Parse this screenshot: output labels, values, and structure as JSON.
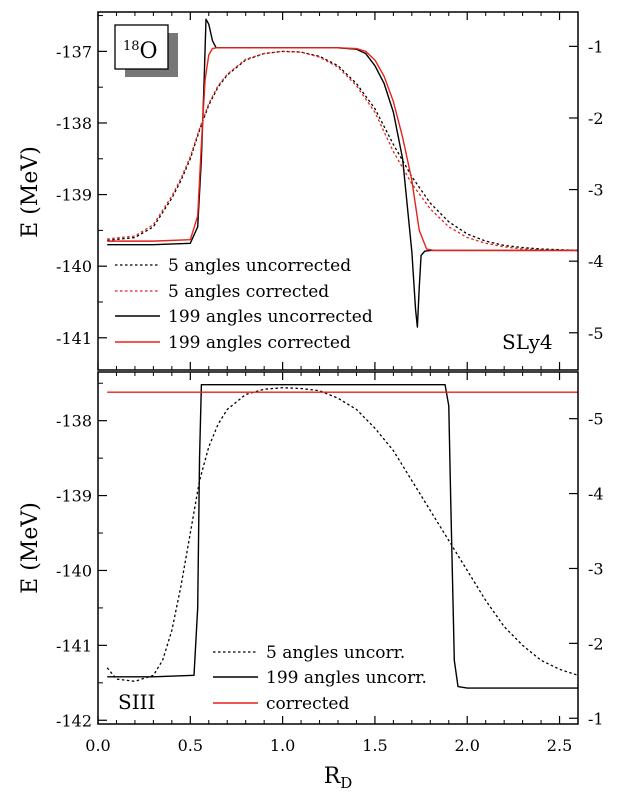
{
  "chart_data": [
    {
      "type": "line",
      "panel": "top",
      "ylabel": "E (MeV)",
      "xlim": [
        0.0,
        2.6
      ],
      "ylim": [
        -141.45,
        -136.45
      ],
      "yticks": [
        -141,
        -140,
        -139,
        -138,
        -137
      ],
      "y2_ticks": [
        "-5",
        "-4",
        "-3",
        "-2",
        "-1"
      ],
      "nucleus_label": {
        "mass": "18",
        "element": "O"
      },
      "force_label": "SLy4",
      "legend_position": "lower-left",
      "series": [
        {
          "name": "5 angles uncorrected",
          "color": "#000000",
          "style": "dotted",
          "x": [
            0.05,
            0.2,
            0.3,
            0.4,
            0.45,
            0.5,
            0.55,
            0.6,
            0.65,
            0.7,
            0.8,
            0.9,
            1.0,
            1.1,
            1.2,
            1.3,
            1.4,
            1.5,
            1.6,
            1.7,
            1.8,
            1.9,
            2.0,
            2.1,
            2.2,
            2.3,
            2.4,
            2.5,
            2.6
          ],
          "y": [
            -139.64,
            -139.6,
            -139.45,
            -139.05,
            -138.8,
            -138.5,
            -138.1,
            -137.75,
            -137.5,
            -137.33,
            -137.12,
            -137.03,
            -137.0,
            -137.01,
            -137.07,
            -137.2,
            -137.45,
            -137.8,
            -138.3,
            -138.75,
            -139.12,
            -139.38,
            -139.55,
            -139.65,
            -139.71,
            -139.74,
            -139.76,
            -139.77,
            -139.78
          ]
        },
        {
          "name": "5 angles corrected",
          "color": "#e8211a",
          "style": "dotted",
          "x": [
            0.05,
            0.2,
            0.3,
            0.4,
            0.45,
            0.5,
            0.55,
            0.6,
            0.65,
            0.7,
            0.8,
            0.9,
            1.0,
            1.1,
            1.2,
            1.3,
            1.4,
            1.5,
            1.6,
            1.7,
            1.8,
            1.9,
            2.0,
            2.1,
            2.2,
            2.3,
            2.4,
            2.5,
            2.6
          ],
          "y": [
            -139.62,
            -139.58,
            -139.42,
            -139.02,
            -138.77,
            -138.47,
            -138.08,
            -137.73,
            -137.48,
            -137.32,
            -137.11,
            -137.03,
            -137.0,
            -137.01,
            -137.08,
            -137.22,
            -137.48,
            -137.85,
            -138.4,
            -138.85,
            -139.2,
            -139.45,
            -139.6,
            -139.68,
            -139.73,
            -139.76,
            -139.77,
            -139.78,
            -139.78
          ]
        },
        {
          "name": "199 angles uncorrected",
          "color": "#000000",
          "style": "solid",
          "x": [
            0.05,
            0.3,
            0.5,
            0.54,
            0.56,
            0.575,
            0.585,
            0.6,
            0.62,
            0.64,
            0.7,
            1.0,
            1.3,
            1.4,
            1.45,
            1.5,
            1.55,
            1.6,
            1.65,
            1.7,
            1.72,
            1.73,
            1.74,
            1.75,
            1.77,
            1.8,
            2.0,
            2.3,
            2.6
          ],
          "y": [
            -139.7,
            -139.7,
            -139.68,
            -139.45,
            -138.5,
            -137.4,
            -136.55,
            -136.62,
            -136.85,
            -136.95,
            -136.95,
            -136.95,
            -136.95,
            -136.97,
            -137.03,
            -137.2,
            -137.45,
            -137.85,
            -138.5,
            -139.8,
            -140.6,
            -140.85,
            -140.3,
            -139.85,
            -139.79,
            -139.78,
            -139.78,
            -139.78,
            -139.78
          ]
        },
        {
          "name": "199 angles corrected",
          "color": "#e8211a",
          "style": "solid",
          "x": [
            0.05,
            0.3,
            0.5,
            0.54,
            0.56,
            0.58,
            0.6,
            0.62,
            0.64,
            0.7,
            1.0,
            1.3,
            1.4,
            1.45,
            1.5,
            1.55,
            1.6,
            1.65,
            1.7,
            1.74,
            1.78,
            1.82,
            2.0,
            2.3,
            2.6
          ],
          "y": [
            -139.65,
            -139.65,
            -139.63,
            -139.3,
            -138.3,
            -137.4,
            -137.05,
            -136.96,
            -136.95,
            -136.95,
            -136.95,
            -136.95,
            -136.96,
            -137.0,
            -137.12,
            -137.35,
            -137.7,
            -138.2,
            -138.8,
            -139.5,
            -139.76,
            -139.78,
            -139.78,
            -139.78,
            -139.78
          ]
        }
      ]
    },
    {
      "type": "line",
      "panel": "bottom",
      "xlabel": "R_D",
      "ylabel": "E (MeV)",
      "xlim": [
        0.0,
        2.6
      ],
      "ylim": [
        -142.05,
        -137.35
      ],
      "xticks": [
        0.0,
        0.5,
        1.0,
        1.5,
        2.0,
        2.5
      ],
      "yticks": [
        -142,
        -141,
        -140,
        -139,
        -138
      ],
      "y2_ticks": [
        "-1",
        "-2",
        "-3",
        "-4",
        "-5"
      ],
      "force_label": "SIII",
      "legend_position": "lower-right",
      "series": [
        {
          "name": "5 angles uncorr.",
          "color": "#000000",
          "style": "dotted",
          "x": [
            0.05,
            0.1,
            0.2,
            0.3,
            0.35,
            0.4,
            0.45,
            0.5,
            0.55,
            0.6,
            0.65,
            0.7,
            0.8,
            0.9,
            1.0,
            1.1,
            1.2,
            1.3,
            1.4,
            1.5,
            1.6,
            1.7,
            1.8,
            1.9,
            2.0,
            2.1,
            2.2,
            2.3,
            2.4,
            2.5,
            2.6
          ],
          "y": [
            -141.3,
            -141.45,
            -141.48,
            -141.4,
            -141.2,
            -140.8,
            -140.2,
            -139.5,
            -138.8,
            -138.35,
            -138.05,
            -137.85,
            -137.65,
            -137.58,
            -137.56,
            -137.57,
            -137.6,
            -137.7,
            -137.85,
            -138.1,
            -138.4,
            -138.8,
            -139.2,
            -139.6,
            -140.0,
            -140.4,
            -140.75,
            -141.0,
            -141.2,
            -141.32,
            -141.4
          ]
        },
        {
          "name": "199 angles uncorr.",
          "color": "#000000",
          "style": "solid",
          "x": [
            0.05,
            0.3,
            0.52,
            0.54,
            0.55,
            0.56,
            0.6,
            1.0,
            1.5,
            1.88,
            1.9,
            1.91,
            1.93,
            1.95,
            2.0,
            2.3,
            2.6
          ],
          "y": [
            -141.42,
            -141.42,
            -141.4,
            -140.5,
            -138.5,
            -137.52,
            -137.52,
            -137.52,
            -137.52,
            -137.52,
            -137.8,
            -139.0,
            -141.2,
            -141.55,
            -141.57,
            -141.57,
            -141.57
          ]
        },
        {
          "name": "corrected",
          "color": "#e8211a",
          "style": "solid",
          "x": [
            0.05,
            2.6
          ],
          "y": [
            -137.62,
            -137.62
          ]
        }
      ]
    }
  ]
}
